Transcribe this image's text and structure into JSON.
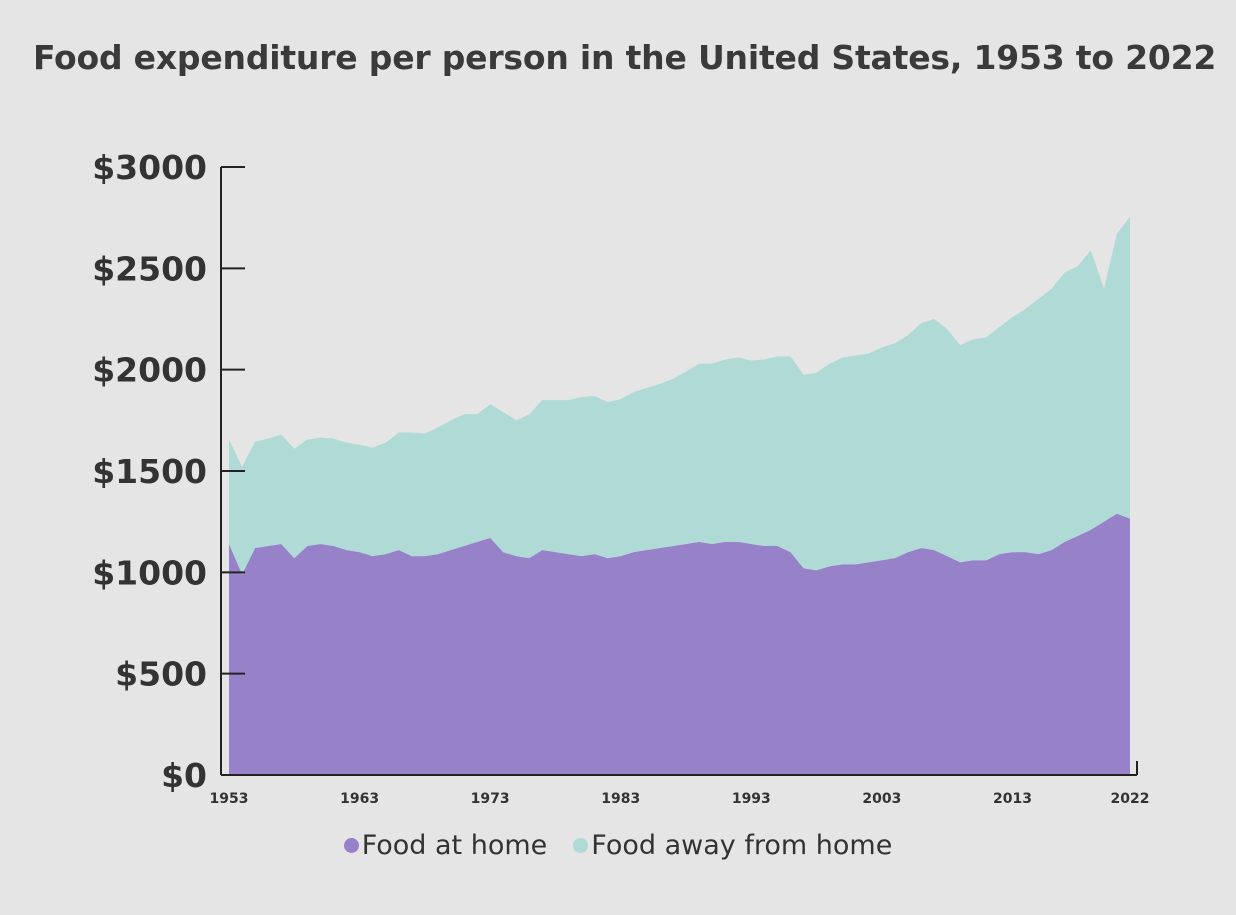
{
  "chart_data": {
    "type": "area",
    "stacked": true,
    "title": "Food expenditure per person in the United States, 1953 to 2022",
    "xlabel": "",
    "ylabel": "",
    "x": [
      1953,
      1954,
      1955,
      1956,
      1957,
      1958,
      1959,
      1960,
      1961,
      1962,
      1963,
      1964,
      1965,
      1966,
      1967,
      1968,
      1969,
      1970,
      1971,
      1972,
      1973,
      1974,
      1975,
      1976,
      1977,
      1978,
      1979,
      1980,
      1981,
      1982,
      1983,
      1984,
      1985,
      1986,
      1987,
      1988,
      1989,
      1990,
      1991,
      1992,
      1993,
      1994,
      1995,
      1996,
      1997,
      1998,
      1999,
      2000,
      2001,
      2002,
      2003,
      2004,
      2005,
      2006,
      2007,
      2008,
      2009,
      2010,
      2011,
      2012,
      2013,
      2014,
      2015,
      2016,
      2017,
      2018,
      2019,
      2020,
      2021,
      2022
    ],
    "xtick_labels": [
      "1953",
      "1963",
      "1973",
      "1983",
      "1993",
      "2003",
      "2013",
      "2022"
    ],
    "xtick_values": [
      1953,
      1963,
      1973,
      1983,
      1993,
      2003,
      2013,
      2022
    ],
    "ylim": [
      0,
      3000
    ],
    "yticks": [
      0,
      500,
      1000,
      1500,
      2000,
      2500,
      3000
    ],
    "ytick_labels": [
      "$0",
      "$500",
      "$1000",
      "$1500",
      "$2000",
      "$2500",
      "$3000"
    ],
    "series": [
      {
        "name": "Food at home",
        "color": "#9782c9",
        "values": [
          1140,
          990,
          1120,
          1130,
          1140,
          1070,
          1130,
          1140,
          1130,
          1110,
          1100,
          1080,
          1090,
          1110,
          1080,
          1080,
          1090,
          1110,
          1130,
          1150,
          1170,
          1100,
          1080,
          1070,
          1110,
          1100,
          1090,
          1080,
          1090,
          1070,
          1080,
          1100,
          1110,
          1120,
          1130,
          1140,
          1150,
          1140,
          1150,
          1150,
          1140,
          1130,
          1130,
          1100,
          1020,
          1010,
          1030,
          1040,
          1040,
          1050,
          1060,
          1070,
          1100,
          1120,
          1110,
          1080,
          1050,
          1060,
          1060,
          1090,
          1100,
          1100,
          1090,
          1110,
          1150,
          1180,
          1210,
          1250,
          1290,
          1265
        ]
      },
      {
        "name": "Food away from home",
        "color": "#afdad6",
        "values": [
          515,
          530,
          525,
          530,
          540,
          540,
          525,
          525,
          530,
          530,
          530,
          535,
          550,
          580,
          610,
          605,
          625,
          640,
          650,
          630,
          660,
          690,
          670,
          710,
          740,
          750,
          760,
          785,
          780,
          770,
          775,
          790,
          800,
          810,
          825,
          850,
          880,
          890,
          900,
          910,
          905,
          920,
          935,
          965,
          955,
          975,
          1000,
          1020,
          1030,
          1030,
          1050,
          1060,
          1070,
          1110,
          1140,
          1120,
          1070,
          1090,
          1100,
          1120,
          1160,
          1200,
          1260,
          1290,
          1330,
          1330,
          1380,
          1150,
          1380,
          1490
        ]
      }
    ],
    "legend_position": "bottom-center",
    "grid": false
  }
}
